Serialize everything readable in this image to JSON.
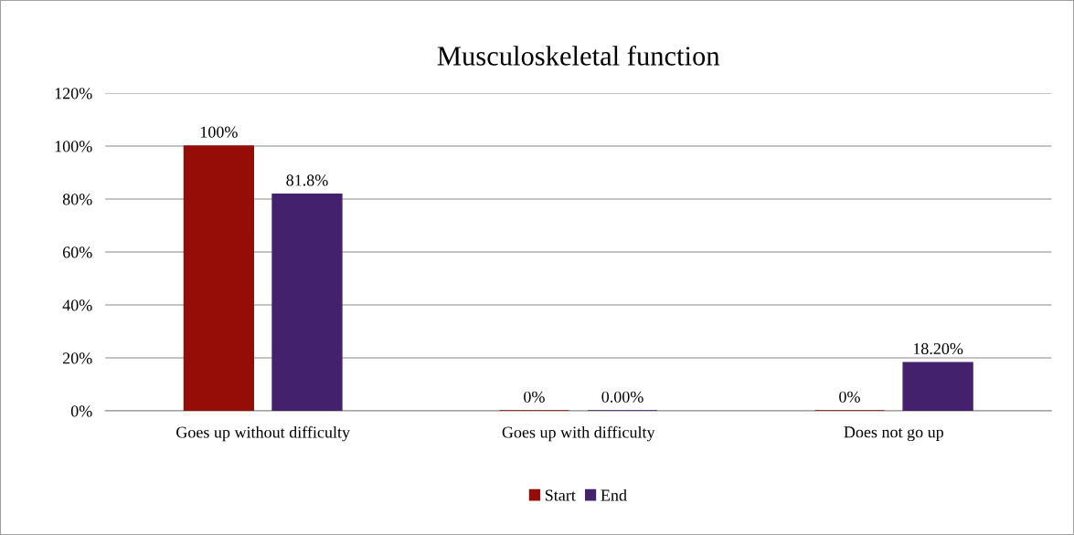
{
  "chart_data": {
    "type": "bar",
    "title": "Musculoskeletal function",
    "categories": [
      "Goes up without difficulty",
      "Goes up with difficulty",
      "Does not go up"
    ],
    "series": [
      {
        "name": "Start",
        "color": "#960c06",
        "values": [
          100,
          0,
          0
        ],
        "value_labels": [
          "100%",
          "0%",
          "0%"
        ]
      },
      {
        "name": "End",
        "color": "#44216c",
        "values": [
          81.8,
          0,
          18.2
        ],
        "value_labels": [
          "81.8%",
          "0.00%",
          "18.20%"
        ]
      }
    ],
    "ylim": [
      0,
      120
    ],
    "yticks": [
      {
        "value": 0,
        "label": "0%"
      },
      {
        "value": 20,
        "label": "20%"
      },
      {
        "value": 40,
        "label": "40%"
      },
      {
        "value": 60,
        "label": "60%"
      },
      {
        "value": 80,
        "label": "80%"
      },
      {
        "value": 100,
        "label": "100%"
      },
      {
        "value": 120,
        "label": "120%"
      }
    ],
    "grid": "y",
    "legend": "bottom"
  }
}
